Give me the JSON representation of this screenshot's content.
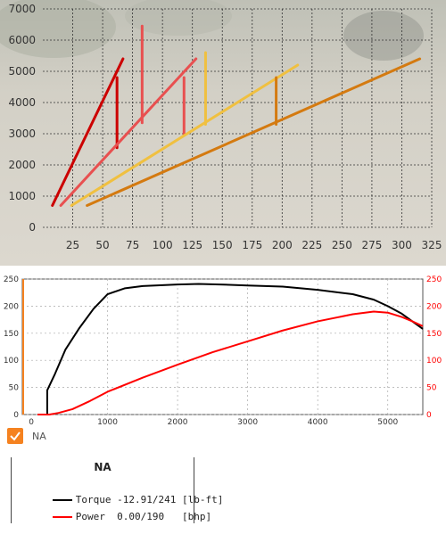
{
  "colors": {
    "background_sand": "#d5d2c9",
    "gear_1": "#cc0000",
    "gear_2": "#e85050",
    "gear_3": "#f0c040",
    "gear_4": "#d4a020",
    "gear_5": "#d47a10",
    "torque": "#000000",
    "power": "#ff0000",
    "accent": "#f58220"
  },
  "chart_data": [
    {
      "type": "line",
      "x_ticks": [
        "25",
        "50",
        "75",
        "100",
        "125",
        "150",
        "175",
        "200",
        "225",
        "250",
        "275",
        "300",
        "325"
      ],
      "y_ticks": [
        "0",
        "1000",
        "2000",
        "3000",
        "4000",
        "5000",
        "6000",
        "7000"
      ],
      "xlim": [
        0,
        325
      ],
      "ylim": [
        0,
        7000
      ],
      "grid": true,
      "series": [
        {
          "color_key": "gear_1",
          "points": [
            [
              8,
              700
            ],
            [
              67,
              5400
            ]
          ]
        },
        {
          "color_key": "gear_1",
          "points": [
            [
              62,
              4800
            ],
            [
              62,
              2550
            ]
          ]
        },
        {
          "color_key": "gear_2",
          "points": [
            [
              15,
              700
            ],
            [
              128,
              5400
            ]
          ]
        },
        {
          "color_key": "gear_2",
          "points": [
            [
              83,
              6450
            ],
            [
              83,
              3350
            ]
          ]
        },
        {
          "color_key": "gear_2",
          "points": [
            [
              118,
              4800
            ],
            [
              118,
              2950
            ]
          ]
        },
        {
          "color_key": "gear_3",
          "points": [
            [
              24,
              700
            ],
            [
              213,
              5200
            ]
          ]
        },
        {
          "color_key": "gear_3",
          "points": [
            [
              136,
              5600
            ],
            [
              136,
              3300
            ]
          ]
        },
        {
          "color_key": "gear_5",
          "points": [
            [
              37,
              700
            ],
            [
              315,
              5400
            ]
          ]
        },
        {
          "color_key": "gear_5",
          "points": [
            [
              195,
              4800
            ],
            [
              195,
              3300
            ]
          ]
        }
      ]
    },
    {
      "type": "line",
      "x_ticks": [
        "1000",
        "2000",
        "3000",
        "4000",
        "5000"
      ],
      "y_left_ticks": [
        "0",
        "50",
        "100",
        "150",
        "200",
        "250"
      ],
      "y_right_ticks": [
        "0",
        "50",
        "100",
        "150",
        "200",
        "250"
      ],
      "xlim": [
        0,
        5500
      ],
      "ylim": [
        0,
        250
      ],
      "grid": true,
      "series": [
        {
          "name": "Torque",
          "color_key": "torque",
          "points": [
            [
              0,
              0
            ],
            [
              140,
              0
            ],
            [
              140,
              45
            ],
            [
              250,
              75
            ],
            [
              400,
              120
            ],
            [
              600,
              160
            ],
            [
              800,
              195
            ],
            [
              1000,
              222
            ],
            [
              1250,
              233
            ],
            [
              1500,
              237
            ],
            [
              2000,
              240
            ],
            [
              2300,
              241
            ],
            [
              2600,
              240
            ],
            [
              3000,
              238
            ],
            [
              3500,
              236
            ],
            [
              4000,
              230
            ],
            [
              4500,
              222
            ],
            [
              4800,
              212
            ],
            [
              5000,
              200
            ],
            [
              5200,
              186
            ],
            [
              5350,
              172
            ],
            [
              5500,
              158
            ]
          ]
        },
        {
          "name": "Power",
          "color_key": "power",
          "points": [
            [
              0,
              0
            ],
            [
              170,
              0
            ],
            [
              300,
              3
            ],
            [
              500,
              10
            ],
            [
              750,
              25
            ],
            [
              1000,
              42
            ],
            [
              1500,
              68
            ],
            [
              2000,
              92
            ],
            [
              2500,
              115
            ],
            [
              3000,
              135
            ],
            [
              3500,
              155
            ],
            [
              4000,
              172
            ],
            [
              4500,
              185
            ],
            [
              4800,
              190
            ],
            [
              5000,
              188
            ],
            [
              5200,
              180
            ],
            [
              5350,
              172
            ],
            [
              5500,
              163
            ]
          ]
        }
      ]
    }
  ],
  "checkbox": {
    "label": "NA",
    "checked": true
  },
  "legend": {
    "title": "NA",
    "rows": [
      {
        "color_key": "torque",
        "text": "Torque -12.91/241 [lb-ft]"
      },
      {
        "color_key": "power",
        "text": "Power  0.00/190   [bhp]"
      }
    ]
  }
}
